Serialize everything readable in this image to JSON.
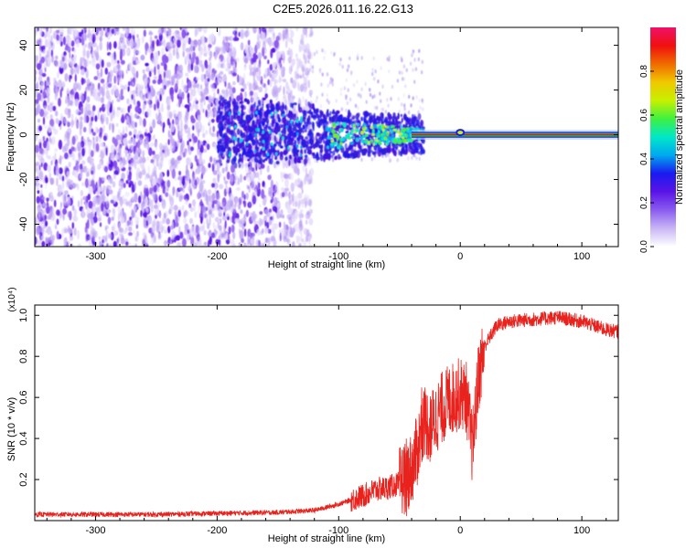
{
  "figure": {
    "title": "C2E5.2026.011.16.22.G13"
  },
  "chart_data": [
    {
      "type": "heatmap",
      "xlabel": "Height of straight line (km)",
      "ylabel": "Frequency (Hz)",
      "xlim": [
        -350,
        130
      ],
      "ylim": [
        -50,
        48
      ],
      "xticks": [
        -300,
        -200,
        -100,
        0,
        100
      ],
      "yticks": [
        -40,
        -20,
        0,
        20,
        40
      ],
      "colorbar": {
        "label": "Normalized spectral amplitude",
        "range": [
          0,
          1
        ],
        "ticks": [
          0.0,
          0.2,
          0.4,
          0.6,
          0.8
        ],
        "colormap": [
          "#ffffff",
          "#c9b6f5",
          "#8a5cf0",
          "#5a14e6",
          "#1a1af0",
          "#00a8f0",
          "#00e8c8",
          "#40f040",
          "#c8f000",
          "#f0c800",
          "#f06a00",
          "#f01010",
          "#f0106a"
        ]
      },
      "bands": [
        {
          "x": [
            -350,
            -125
          ],
          "y": [
            -50,
            48
          ],
          "density": "high",
          "color": "#6a28e8"
        },
        {
          "x": [
            -200,
            -30
          ],
          "y": [
            -15,
            18
          ],
          "density": "very high",
          "color": "#3a1ad8"
        },
        {
          "x": [
            -100,
            -30
          ],
          "y": [
            -10,
            10
          ],
          "peak_color": "#00f0c0"
        },
        {
          "x": [
            -35,
            130
          ],
          "y": [
            -1,
            1
          ],
          "color": "#f01010"
        }
      ]
    },
    {
      "type": "line",
      "xlabel": "Height of straight line (km)",
      "ylabel": "SNR (10 * v/v)",
      "yscale_note": "(x10⁴)",
      "xlim": [
        -350,
        130
      ],
      "ylim": [
        0,
        1.05
      ],
      "xticks": [
        -300,
        -200,
        -100,
        0,
        100
      ],
      "yticks": [
        0.2,
        0.4,
        0.6,
        0.8,
        1.0
      ],
      "series": [
        {
          "color": "#e8231e",
          "x": [
            -350,
            -300,
            -250,
            -200,
            -150,
            -120,
            -100,
            -80,
            -70,
            -60,
            -50,
            -40,
            -35,
            -30,
            -25,
            -20,
            -15,
            -10,
            -5,
            0,
            5,
            10,
            15,
            20,
            30,
            40,
            60,
            80,
            100,
            120,
            130
          ],
          "y": [
            0.03,
            0.03,
            0.03,
            0.035,
            0.04,
            0.05,
            0.08,
            0.12,
            0.15,
            0.16,
            0.18,
            0.25,
            0.35,
            0.5,
            0.45,
            0.5,
            0.55,
            0.58,
            0.6,
            0.62,
            0.6,
            0.35,
            0.7,
            0.85,
            0.95,
            0.97,
            0.98,
            0.99,
            0.97,
            0.93,
            0.92
          ]
        }
      ]
    }
  ]
}
